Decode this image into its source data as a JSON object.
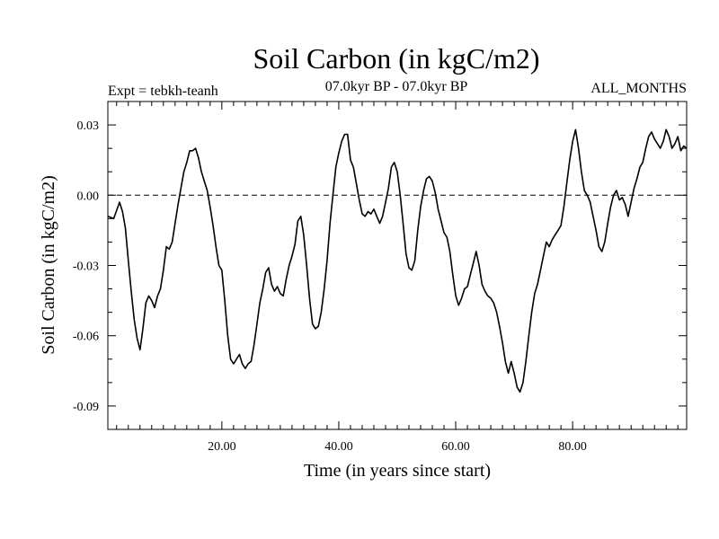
{
  "chart_data": {
    "type": "line",
    "title": "Soil Carbon (in kgC/m2)",
    "subtitle": "07.0kyr BP - 07.0kyr BP",
    "left_label": "Expt = tebkh-teanh",
    "right_label": "ALL_MONTHS",
    "xlabel": "Time (in years since start)",
    "ylabel": "Soil Carbon (in kgC/m2)",
    "xlim": [
      0.5,
      99.5
    ],
    "ylim": [
      -0.1,
      0.04
    ],
    "x_ticks": [
      20,
      40,
      60,
      80
    ],
    "x_tick_labels": [
      "20.00",
      "40.00",
      "60.00",
      "80.00"
    ],
    "y_ticks": [
      0.03,
      0.0,
      -0.03,
      -0.06,
      -0.09
    ],
    "y_tick_labels": [
      "0.03",
      "0.00",
      "-0.03",
      "-0.06",
      "-0.09"
    ],
    "zero_line": "dashed",
    "series": [
      {
        "name": "Soil Carbon",
        "color": "#000000",
        "points": [
          [
            0.5,
            -0.009
          ],
          [
            1.5,
            -0.01
          ],
          [
            2.5,
            -0.003
          ],
          [
            3.0,
            -0.007
          ],
          [
            3.5,
            -0.014
          ],
          [
            4.0,
            -0.028
          ],
          [
            4.5,
            -0.041
          ],
          [
            5.0,
            -0.053
          ],
          [
            5.5,
            -0.061
          ],
          [
            6.0,
            -0.066
          ],
          [
            6.5,
            -0.057
          ],
          [
            7.0,
            -0.046
          ],
          [
            7.5,
            -0.043
          ],
          [
            8.0,
            -0.045
          ],
          [
            8.5,
            -0.048
          ],
          [
            9.0,
            -0.043
          ],
          [
            9.5,
            -0.04
          ],
          [
            10.0,
            -0.032
          ],
          [
            10.5,
            -0.022
          ],
          [
            11.0,
            -0.023
          ],
          [
            11.5,
            -0.02
          ],
          [
            12.0,
            -0.012
          ],
          [
            12.5,
            -0.004
          ],
          [
            13.0,
            0.003
          ],
          [
            13.5,
            0.01
          ],
          [
            14.0,
            0.014
          ],
          [
            14.5,
            0.019
          ],
          [
            15.0,
            0.019
          ],
          [
            15.5,
            0.02
          ],
          [
            16.0,
            0.016
          ],
          [
            16.5,
            0.01
          ],
          [
            17.0,
            0.006
          ],
          [
            17.5,
            0.002
          ],
          [
            18.0,
            -0.005
          ],
          [
            18.5,
            -0.013
          ],
          [
            19.0,
            -0.022
          ],
          [
            19.5,
            -0.03
          ],
          [
            20.0,
            -0.032
          ],
          [
            20.5,
            -0.045
          ],
          [
            21.0,
            -0.06
          ],
          [
            21.5,
            -0.07
          ],
          [
            22.0,
            -0.072
          ],
          [
            22.5,
            -0.07
          ],
          [
            23.0,
            -0.068
          ],
          [
            23.5,
            -0.072
          ],
          [
            24.0,
            -0.074
          ],
          [
            24.5,
            -0.072
          ],
          [
            25.0,
            -0.071
          ],
          [
            25.5,
            -0.064
          ],
          [
            26.0,
            -0.055
          ],
          [
            26.5,
            -0.046
          ],
          [
            27.0,
            -0.04
          ],
          [
            27.5,
            -0.033
          ],
          [
            28.0,
            -0.031
          ],
          [
            28.5,
            -0.038
          ],
          [
            29.0,
            -0.041
          ],
          [
            29.5,
            -0.039
          ],
          [
            30.0,
            -0.042
          ],
          [
            30.5,
            -0.043
          ],
          [
            31.0,
            -0.036
          ],
          [
            31.5,
            -0.03
          ],
          [
            32.0,
            -0.026
          ],
          [
            32.5,
            -0.021
          ],
          [
            33.0,
            -0.011
          ],
          [
            33.5,
            -0.009
          ],
          [
            34.0,
            -0.017
          ],
          [
            34.5,
            -0.03
          ],
          [
            35.0,
            -0.044
          ],
          [
            35.5,
            -0.055
          ],
          [
            36.0,
            -0.057
          ],
          [
            36.5,
            -0.056
          ],
          [
            37.0,
            -0.05
          ],
          [
            37.5,
            -0.04
          ],
          [
            38.0,
            -0.028
          ],
          [
            38.5,
            -0.012
          ],
          [
            39.0,
            0.0
          ],
          [
            39.5,
            0.012
          ],
          [
            40.0,
            0.018
          ],
          [
            40.5,
            0.023
          ],
          [
            41.0,
            0.026
          ],
          [
            41.5,
            0.026
          ],
          [
            42.0,
            0.015
          ],
          [
            42.5,
            0.012
          ],
          [
            43.0,
            0.005
          ],
          [
            43.5,
            -0.002
          ],
          [
            44.0,
            -0.008
          ],
          [
            44.5,
            -0.009
          ],
          [
            45.0,
            -0.007
          ],
          [
            45.5,
            -0.008
          ],
          [
            46.0,
            -0.006
          ],
          [
            46.5,
            -0.009
          ],
          [
            47.0,
            -0.012
          ],
          [
            47.5,
            -0.009
          ],
          [
            48.0,
            -0.003
          ],
          [
            48.5,
            0.003
          ],
          [
            49.0,
            0.012
          ],
          [
            49.5,
            0.014
          ],
          [
            50.0,
            0.01
          ],
          [
            50.5,
            0.0
          ],
          [
            51.0,
            -0.012
          ],
          [
            51.5,
            -0.025
          ],
          [
            52.0,
            -0.031
          ],
          [
            52.5,
            -0.032
          ],
          [
            53.0,
            -0.028
          ],
          [
            53.5,
            -0.015
          ],
          [
            54.0,
            -0.005
          ],
          [
            54.5,
            0.002
          ],
          [
            55.0,
            0.007
          ],
          [
            55.5,
            0.008
          ],
          [
            56.0,
            0.006
          ],
          [
            56.5,
            0.001
          ],
          [
            57.0,
            -0.006
          ],
          [
            57.5,
            -0.011
          ],
          [
            58.0,
            -0.016
          ],
          [
            58.5,
            -0.018
          ],
          [
            59.0,
            -0.024
          ],
          [
            59.5,
            -0.034
          ],
          [
            60.0,
            -0.043
          ],
          [
            60.5,
            -0.047
          ],
          [
            61.0,
            -0.044
          ],
          [
            61.5,
            -0.04
          ],
          [
            62.0,
            -0.039
          ],
          [
            62.5,
            -0.034
          ],
          [
            63.0,
            -0.029
          ],
          [
            63.5,
            -0.024
          ],
          [
            64.0,
            -0.03
          ],
          [
            64.5,
            -0.038
          ],
          [
            65.0,
            -0.041
          ],
          [
            65.5,
            -0.043
          ],
          [
            66.0,
            -0.044
          ],
          [
            66.5,
            -0.046
          ],
          [
            67.0,
            -0.05
          ],
          [
            67.5,
            -0.056
          ],
          [
            68.0,
            -0.063
          ],
          [
            68.5,
            -0.071
          ],
          [
            69.0,
            -0.076
          ],
          [
            69.5,
            -0.071
          ],
          [
            70.0,
            -0.076
          ],
          [
            70.5,
            -0.082
          ],
          [
            71.0,
            -0.084
          ],
          [
            71.5,
            -0.08
          ],
          [
            72.0,
            -0.071
          ],
          [
            72.5,
            -0.06
          ],
          [
            73.0,
            -0.05
          ],
          [
            73.5,
            -0.042
          ],
          [
            74.0,
            -0.038
          ],
          [
            74.5,
            -0.032
          ],
          [
            75.0,
            -0.026
          ],
          [
            75.5,
            -0.02
          ],
          [
            76.0,
            -0.022
          ],
          [
            76.5,
            -0.019
          ],
          [
            77.0,
            -0.017
          ],
          [
            77.5,
            -0.015
          ],
          [
            78.0,
            -0.013
          ],
          [
            78.5,
            -0.005
          ],
          [
            79.0,
            0.005
          ],
          [
            79.5,
            0.015
          ],
          [
            80.0,
            0.023
          ],
          [
            80.5,
            0.028
          ],
          [
            81.0,
            0.02
          ],
          [
            81.5,
            0.01
          ],
          [
            82.0,
            0.002
          ],
          [
            82.5,
            0.0
          ],
          [
            83.0,
            -0.003
          ],
          [
            83.5,
            -0.009
          ],
          [
            84.0,
            -0.015
          ],
          [
            84.5,
            -0.022
          ],
          [
            85.0,
            -0.024
          ],
          [
            85.5,
            -0.02
          ],
          [
            86.0,
            -0.012
          ],
          [
            86.5,
            -0.005
          ],
          [
            87.0,
            0.0
          ],
          [
            87.5,
            0.002
          ],
          [
            88.0,
            -0.002
          ],
          [
            88.5,
            -0.001
          ],
          [
            89.0,
            -0.004
          ],
          [
            89.5,
            -0.009
          ],
          [
            90.0,
            -0.003
          ],
          [
            90.5,
            0.003
          ],
          [
            91.0,
            0.007
          ],
          [
            91.5,
            0.012
          ],
          [
            92.0,
            0.014
          ],
          [
            92.5,
            0.02
          ],
          [
            93.0,
            0.025
          ],
          [
            93.5,
            0.027
          ],
          [
            94.0,
            0.024
          ],
          [
            94.5,
            0.022
          ],
          [
            95.0,
            0.02
          ],
          [
            95.5,
            0.023
          ],
          [
            96.0,
            0.028
          ],
          [
            96.5,
            0.025
          ],
          [
            97.0,
            0.02
          ],
          [
            97.5,
            0.022
          ],
          [
            98.0,
            0.025
          ],
          [
            98.5,
            0.019
          ],
          [
            99.0,
            0.021
          ],
          [
            99.5,
            0.02
          ]
        ]
      }
    ]
  }
}
